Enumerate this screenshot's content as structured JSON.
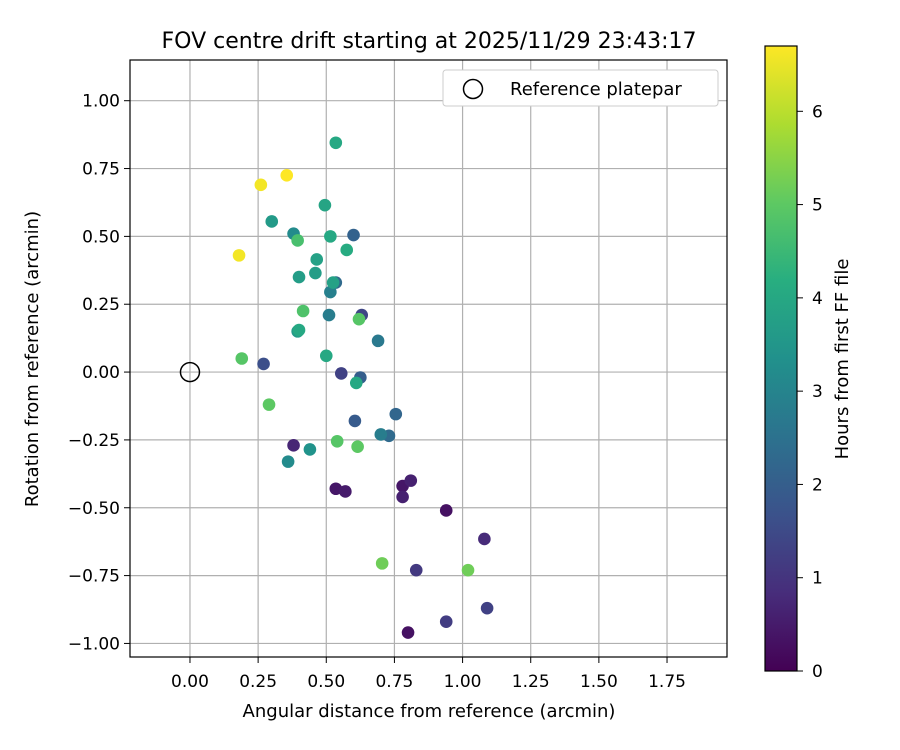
{
  "chart_data": {
    "type": "scatter",
    "title": "FOV centre drift starting at 2025/11/29 23:43:17",
    "xlabel": "Angular distance from reference (arcmin)",
    "ylabel": "Rotation from reference (arcmin)",
    "xlim": [
      -0.22,
      1.97
    ],
    "ylim": [
      -1.05,
      1.15
    ],
    "xticks": [
      0.0,
      0.25,
      0.5,
      0.75,
      1.0,
      1.25,
      1.5,
      1.75
    ],
    "xtick_labels": [
      "0.00",
      "0.25",
      "0.50",
      "0.75",
      "1.00",
      "1.25",
      "1.50",
      "1.75"
    ],
    "yticks": [
      -1.0,
      -0.75,
      -0.5,
      -0.25,
      0.0,
      0.25,
      0.5,
      0.75,
      1.0
    ],
    "ytick_labels": [
      "−1.00",
      "−0.75",
      "−0.50",
      "−0.25",
      "0.00",
      "0.25",
      "0.50",
      "0.75",
      "1.00"
    ],
    "grid": true,
    "legend": {
      "position": "top-right",
      "entries": [
        "Reference platepar"
      ]
    },
    "reference_point": {
      "x": 0.0,
      "y": 0.0
    },
    "colorbar": {
      "label": "Hours from first FF file",
      "range": [
        0,
        6.7
      ],
      "ticks": [
        0,
        1,
        2,
        3,
        4,
        5,
        6
      ],
      "tick_labels": [
        "0",
        "1",
        "2",
        "3",
        "4",
        "5",
        "6"
      ],
      "colormap": "viridis"
    },
    "series": [
      {
        "name": "FOV drift",
        "points": [
          {
            "x": 0.8,
            "y": -0.96,
            "c": 0.3
          },
          {
            "x": 0.94,
            "y": -0.51,
            "c": 0.3
          },
          {
            "x": 0.535,
            "y": -0.43,
            "c": 0.4
          },
          {
            "x": 0.57,
            "y": -0.44,
            "c": 0.5
          },
          {
            "x": 0.78,
            "y": -0.42,
            "c": 0.4
          },
          {
            "x": 0.78,
            "y": -0.46,
            "c": 0.6
          },
          {
            "x": 0.81,
            "y": -0.4,
            "c": 0.6
          },
          {
            "x": 0.38,
            "y": -0.27,
            "c": 0.7
          },
          {
            "x": 1.08,
            "y": -0.615,
            "c": 0.8
          },
          {
            "x": 0.83,
            "y": -0.73,
            "c": 1.1
          },
          {
            "x": 0.94,
            "y": -0.92,
            "c": 1.2
          },
          {
            "x": 1.09,
            "y": -0.87,
            "c": 1.3
          },
          {
            "x": 0.555,
            "y": -0.005,
            "c": 1.3
          },
          {
            "x": 0.63,
            "y": 0.21,
            "c": 1.4
          },
          {
            "x": 0.27,
            "y": 0.03,
            "c": 1.6
          },
          {
            "x": 0.605,
            "y": -0.18,
            "c": 1.9
          },
          {
            "x": 0.625,
            "y": -0.02,
            "c": 2.0
          },
          {
            "x": 0.755,
            "y": -0.155,
            "c": 2.2
          },
          {
            "x": 0.73,
            "y": -0.235,
            "c": 2.3
          },
          {
            "x": 0.6,
            "y": 0.505,
            "c": 2.1
          },
          {
            "x": 0.535,
            "y": 0.33,
            "c": 2.3
          },
          {
            "x": 0.69,
            "y": 0.115,
            "c": 2.7
          },
          {
            "x": 0.7,
            "y": -0.23,
            "c": 2.8
          },
          {
            "x": 0.51,
            "y": 0.21,
            "c": 2.8
          },
          {
            "x": 0.515,
            "y": 0.295,
            "c": 2.9
          },
          {
            "x": 0.36,
            "y": -0.33,
            "c": 3.2
          },
          {
            "x": 0.38,
            "y": 0.51,
            "c": 3.2
          },
          {
            "x": 0.44,
            "y": -0.285,
            "c": 3.4
          },
          {
            "x": 0.3,
            "y": 0.555,
            "c": 3.6
          },
          {
            "x": 0.395,
            "y": 0.15,
            "c": 3.6
          },
          {
            "x": 0.4,
            "y": 0.35,
            "c": 3.7
          },
          {
            "x": 0.46,
            "y": 0.365,
            "c": 3.7
          },
          {
            "x": 0.525,
            "y": 0.33,
            "c": 3.8
          },
          {
            "x": 0.465,
            "y": 0.415,
            "c": 3.8
          },
          {
            "x": 0.495,
            "y": 0.615,
            "c": 3.9
          },
          {
            "x": 0.515,
            "y": 0.5,
            "c": 4.0
          },
          {
            "x": 0.535,
            "y": 0.845,
            "c": 4.0
          },
          {
            "x": 0.575,
            "y": 0.45,
            "c": 4.1
          },
          {
            "x": 0.5,
            "y": 0.06,
            "c": 4.0
          },
          {
            "x": 0.61,
            "y": -0.04,
            "c": 4.0
          },
          {
            "x": 0.4,
            "y": 0.155,
            "c": 4.0
          },
          {
            "x": 0.395,
            "y": 0.485,
            "c": 4.7
          },
          {
            "x": 0.415,
            "y": 0.225,
            "c": 4.8
          },
          {
            "x": 0.62,
            "y": 0.195,
            "c": 4.9
          },
          {
            "x": 0.54,
            "y": -0.255,
            "c": 4.9
          },
          {
            "x": 0.615,
            "y": -0.275,
            "c": 5.0
          },
          {
            "x": 0.19,
            "y": 0.05,
            "c": 4.9
          },
          {
            "x": 0.29,
            "y": -0.12,
            "c": 5.0
          },
          {
            "x": 0.705,
            "y": -0.705,
            "c": 5.2
          },
          {
            "x": 1.02,
            "y": -0.73,
            "c": 5.2
          },
          {
            "x": 0.18,
            "y": 0.43,
            "c": 6.6
          },
          {
            "x": 0.26,
            "y": 0.69,
            "c": 6.6
          },
          {
            "x": 0.355,
            "y": 0.725,
            "c": 6.7
          }
        ]
      }
    ]
  }
}
